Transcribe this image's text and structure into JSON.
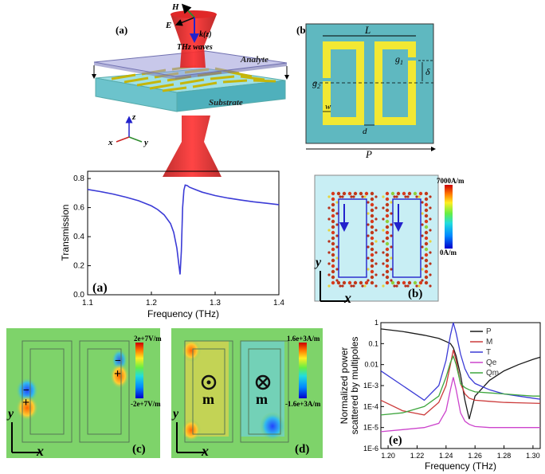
{
  "panel_a_top": {
    "label": "(a)",
    "h_label": "H",
    "e_label": "E",
    "k_label": "k(z)",
    "wave_label": "THz waves",
    "analyte_label": "Analyte",
    "substrate_label": "Substrate",
    "axis_x": "x",
    "axis_y": "y",
    "axis_z": "z"
  },
  "panel_b_top": {
    "label": "(b)",
    "L": "L",
    "g1": "g",
    "g1_sub": "1",
    "g2": "g",
    "g2_sub": "2",
    "delta": "δ",
    "w": "w",
    "d": "d",
    "P": "P"
  },
  "transmission_chart": {
    "panel_label": "(a)",
    "chart_data": {
      "type": "line",
      "xlabel": "Frequency (THz)",
      "ylabel": "Transmission",
      "xlim": [
        1.1,
        1.4
      ],
      "ylim": [
        0.0,
        0.85
      ],
      "xticks": [
        "1.1",
        "1.2",
        "1.3",
        "1.4"
      ],
      "yticks": [
        "0.0",
        "0.2",
        "0.4",
        "0.6",
        "0.8"
      ],
      "color": "#3b3bd6",
      "x": [
        1.1,
        1.12,
        1.14,
        1.16,
        1.18,
        1.2,
        1.21,
        1.22,
        1.23,
        1.235,
        1.24,
        1.243,
        1.245,
        1.247,
        1.249,
        1.251,
        1.253,
        1.256,
        1.26,
        1.27,
        1.28,
        1.3,
        1.32,
        1.34,
        1.36,
        1.38,
        1.4
      ],
      "y": [
        0.725,
        0.71,
        0.693,
        0.672,
        0.647,
        0.612,
        0.586,
        0.55,
        0.49,
        0.43,
        0.32,
        0.21,
        0.14,
        0.3,
        0.6,
        0.72,
        0.755,
        0.752,
        0.74,
        0.722,
        0.706,
        0.683,
        0.666,
        0.652,
        0.64,
        0.63,
        0.62
      ],
      "grid": false
    }
  },
  "current_map": {
    "panel_label": "(b)",
    "scale_max": "7000A/m",
    "scale_min": "0A/m",
    "axis_x": "x",
    "axis_y": "y"
  },
  "efield_map": {
    "panel_label": "(c)",
    "scale_max": "2e+7V/m",
    "scale_min": "-2e+7V/m",
    "minus": "−",
    "plus": "+",
    "axis_x": "x",
    "axis_y": "y"
  },
  "hfield_map": {
    "panel_label": "(d)",
    "scale_max": "1.6e+3A/m",
    "scale_min": "-1.6e+3A/m",
    "m_label": "m",
    "axis_x": "x",
    "axis_y": "y"
  },
  "multipole_chart": {
    "panel_label": "(e)",
    "chart_data": {
      "type": "line",
      "xlabel": "Frequency (THz)",
      "ylabel": "Normalized power scattered by multipoles",
      "ylabel_lines": [
        "Normalized power",
        "scattered by multipoles"
      ],
      "scale": "log",
      "xlim": [
        1.195,
        1.305
      ],
      "ylim_exp": [
        -6,
        0
      ],
      "xticks": [
        "1.20",
        "1.22",
        "1.24",
        "1.26",
        "1.28",
        "1.30"
      ],
      "yticks": [
        "1E-6",
        "1E-5",
        "1E-4",
        "1E-3",
        "0.01",
        "0.1",
        "1"
      ],
      "legend_placement": "top-right",
      "x": [
        1.195,
        1.21,
        1.225,
        1.235,
        1.24,
        1.243,
        1.245,
        1.247,
        1.25,
        1.253,
        1.256,
        1.26,
        1.27,
        1.28,
        1.29,
        1.3,
        1.305
      ],
      "series": [
        {
          "name": "P",
          "color": "#1a1a1a",
          "log_values": [
            -0.3,
            -0.42,
            -0.6,
            -0.75,
            -0.9,
            -1.0,
            -1.2,
            -1.6,
            -2.5,
            -3.7,
            -4.6,
            -3.5,
            -2.75,
            -2.3,
            -2.0,
            -1.75,
            -1.65
          ]
        },
        {
          "name": "M",
          "color": "#cc3b3b",
          "log_values": [
            -3.7,
            -4.2,
            -4.4,
            -3.8,
            -3.0,
            -2.0,
            -1.3,
            -1.8,
            -2.9,
            -3.4,
            -3.6,
            -3.7,
            -3.75,
            -3.8,
            -3.82,
            -3.84,
            -3.85
          ]
        },
        {
          "name": "T",
          "color": "#3b3bd6",
          "log_values": [
            -2.3,
            -3.0,
            -3.7,
            -3.0,
            -1.8,
            -0.6,
            0.0,
            -0.5,
            -1.5,
            -2.2,
            -2.6,
            -2.9,
            -3.2,
            -3.4,
            -3.5,
            -3.6,
            -3.65
          ]
        },
        {
          "name": "Qe",
          "color": "#cc44cc",
          "log_values": [
            -5.2,
            -5.1,
            -5.0,
            -4.8,
            -4.2,
            -3.2,
            -2.6,
            -3.2,
            -4.3,
            -4.7,
            -4.85,
            -4.95,
            -5.0,
            -5.0,
            -5.0,
            -5.0,
            -5.0
          ]
        },
        {
          "name": "Qm",
          "color": "#3ea63e",
          "log_values": [
            -4.4,
            -4.3,
            -4.0,
            -3.5,
            -2.6,
            -1.9,
            -1.6,
            -2.0,
            -2.9,
            -3.1,
            -3.2,
            -3.3,
            -3.35,
            -3.4,
            -3.45,
            -3.5,
            -3.5
          ]
        }
      ]
    }
  }
}
